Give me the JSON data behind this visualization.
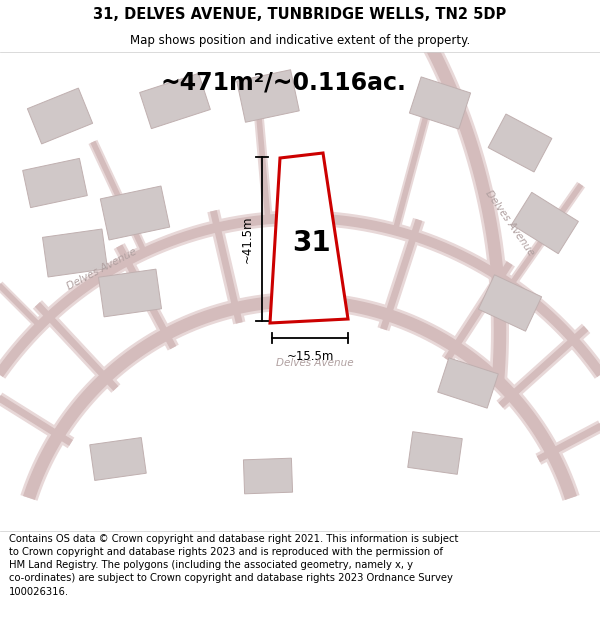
{
  "title": "31, DELVES AVENUE, TUNBRIDGE WELLS, TN2 5DP",
  "subtitle": "Map shows position and indicative extent of the property.",
  "area_text": "~471m²/~0.116ac.",
  "label_31": "31",
  "dim_height": "~41.5m",
  "dim_width": "~15.5m",
  "map_bg": "#faf8f8",
  "road_color_light": "#e8d8d8",
  "road_color_dark": "#d4bcbc",
  "plot_fill": "#ffffff",
  "plot_edge": "#cc0000",
  "building_fill": "#d0c8c8",
  "building_edge": "#c0b0b0",
  "road_label_color": "#b0a0a0",
  "footer_text": "Contains OS data © Crown copyright and database right 2021. This information is subject to Crown copyright and database rights 2023 and is reproduced with the permission of HM Land Registry. The polygons (including the associated geometry, namely x, y co-ordinates) are subject to Crown copyright and database rights 2023 Ordnance Survey 100026316.",
  "title_fontsize": 10.5,
  "subtitle_fontsize": 8.5,
  "area_fontsize": 17,
  "footer_fontsize": 7.2,
  "dim_fontsize": 8.5,
  "label_fontsize": 20
}
